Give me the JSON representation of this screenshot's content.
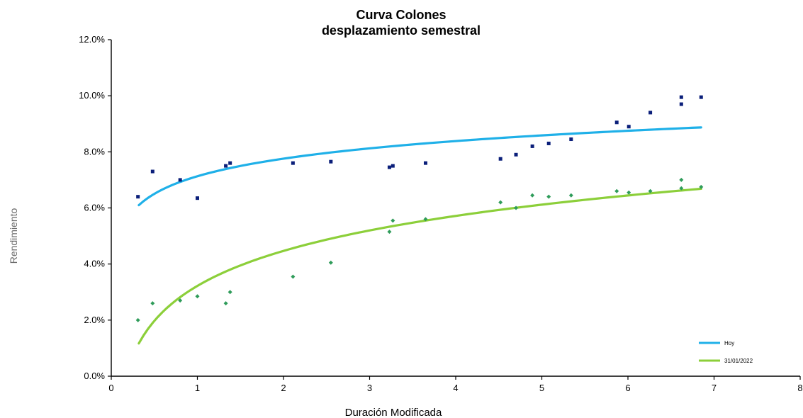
{
  "chart_data": {
    "type": "scatter",
    "title": [
      "Curva Colones",
      "desplazamiento semestral"
    ],
    "xlabel": "Duración Modificada",
    "ylabel": "Rendimiento",
    "xlim": [
      0,
      8
    ],
    "ylim": [
      0,
      12
    ],
    "x_ticks": [
      "0",
      "1",
      "2",
      "3",
      "4",
      "5",
      "6",
      "7",
      "8"
    ],
    "y_ticks": [
      "0.0%",
      "2.0%",
      "4.0%",
      "6.0%",
      "8.0%",
      "10.0%",
      "12.0%"
    ],
    "grid": false,
    "legend_position": "bottom-right",
    "series": [
      {
        "name": "Hoy",
        "color": "#1fb0e8",
        "marker_color": "#0b1f7a",
        "marker": "square",
        "points": [
          [
            0.31,
            6.4
          ],
          [
            0.48,
            7.3
          ],
          [
            0.8,
            7.0
          ],
          [
            1.0,
            6.35
          ],
          [
            1.33,
            7.5
          ],
          [
            1.38,
            7.6
          ],
          [
            2.11,
            7.6
          ],
          [
            2.55,
            7.65
          ],
          [
            3.23,
            7.45
          ],
          [
            3.27,
            7.5
          ],
          [
            3.65,
            7.6
          ],
          [
            4.52,
            7.75
          ],
          [
            4.7,
            7.9
          ],
          [
            4.89,
            8.2
          ],
          [
            5.08,
            8.3
          ],
          [
            5.34,
            8.45
          ],
          [
            5.87,
            9.05
          ],
          [
            6.01,
            8.9
          ],
          [
            6.26,
            9.4
          ],
          [
            6.62,
            9.95
          ],
          [
            6.62,
            9.7
          ],
          [
            6.85,
            9.95
          ]
        ],
        "trend": {
          "type": "log",
          "a": 7.13,
          "b": 0.905,
          "x_range": [
            0.32,
            6.85
          ]
        }
      },
      {
        "name": "31/01/2022",
        "color": "#8ccf3a",
        "marker_color": "#2f9c5a",
        "marker": "diamond",
        "points": [
          [
            0.31,
            2.0
          ],
          [
            0.48,
            2.6
          ],
          [
            0.8,
            2.7
          ],
          [
            1.0,
            2.85
          ],
          [
            1.33,
            2.6
          ],
          [
            1.38,
            3.0
          ],
          [
            2.11,
            3.55
          ],
          [
            2.55,
            4.05
          ],
          [
            3.23,
            5.15
          ],
          [
            3.27,
            5.55
          ],
          [
            3.65,
            5.6
          ],
          [
            4.52,
            6.2
          ],
          [
            4.7,
            6.0
          ],
          [
            4.89,
            6.45
          ],
          [
            5.08,
            6.4
          ],
          [
            5.34,
            6.45
          ],
          [
            5.87,
            6.6
          ],
          [
            6.01,
            6.55
          ],
          [
            6.26,
            6.6
          ],
          [
            6.62,
            7.0
          ],
          [
            6.62,
            6.7
          ],
          [
            6.85,
            6.75
          ]
        ],
        "trend": {
          "type": "log",
          "a": 3.22,
          "b": 1.8,
          "x_range": [
            0.32,
            6.85
          ]
        }
      }
    ]
  }
}
